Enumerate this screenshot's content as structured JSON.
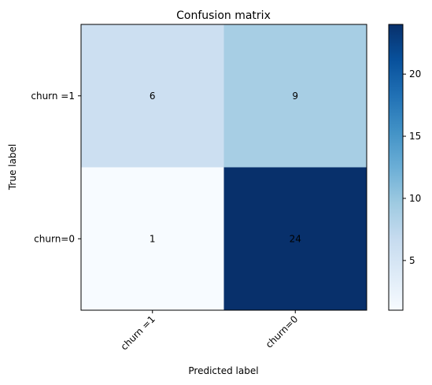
{
  "chart_data": {
    "type": "heatmap",
    "title": "Confusion matrix",
    "xlabel": "Predicted label",
    "ylabel": "True label",
    "x_categories": [
      "churn =1",
      "churn=0"
    ],
    "y_categories": [
      "churn =1",
      "churn=0"
    ],
    "values": [
      [
        6,
        9
      ],
      [
        1,
        24
      ]
    ],
    "colormap": "Blues",
    "color_range": [
      1,
      24
    ],
    "colorbar_ticks": [
      5,
      10,
      15,
      20
    ],
    "colorbar_tick_labels": [
      "5",
      "10",
      "15",
      "20"
    ],
    "grid": false
  }
}
